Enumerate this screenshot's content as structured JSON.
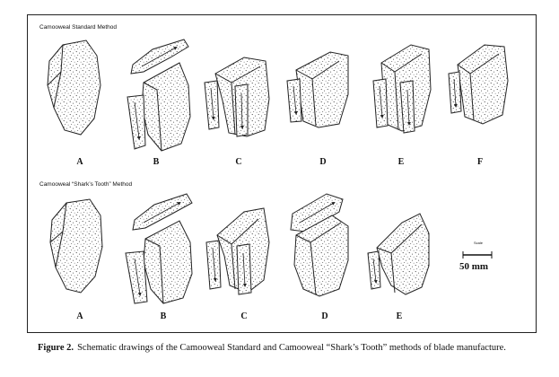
{
  "sections": [
    {
      "title": "Camooweal Standard Method",
      "panels": [
        "A",
        "B",
        "C",
        "D",
        "E",
        "F"
      ]
    },
    {
      "title": "Camooweal “Shark’s Tooth” Method",
      "panels": [
        "A",
        "B",
        "C",
        "D",
        "E"
      ]
    }
  ],
  "scale_bar": {
    "small_label": "Scale",
    "label": "50 mm"
  },
  "caption": {
    "figure": "Figure 2.",
    "text": "Schematic drawings of the Camooweal Standard and Camooweal “Shark’s Tooth” methods of blade manufacture."
  }
}
